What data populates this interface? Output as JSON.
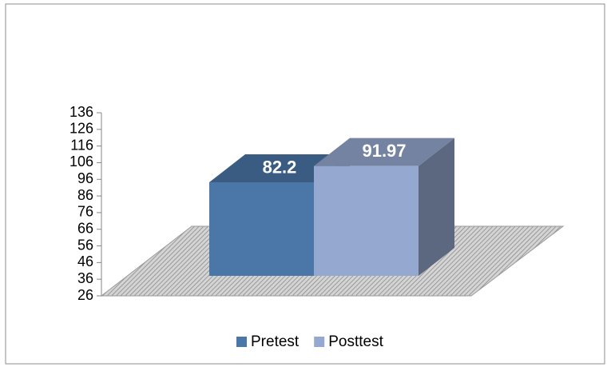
{
  "chart_data": {
    "type": "bar3d",
    "categories": [
      null
    ],
    "series": [
      {
        "name": "Pretest",
        "color": "#4a76a8",
        "values": [
          82.2
        ]
      },
      {
        "name": "Posttest",
        "color": "#95a8cf",
        "values": [
          91.97
        ]
      }
    ],
    "ylim": [
      26,
      136
    ],
    "yticks": [
      26,
      36,
      46,
      56,
      66,
      76,
      86,
      96,
      106,
      116,
      126,
      136
    ],
    "legend": "bottom"
  }
}
